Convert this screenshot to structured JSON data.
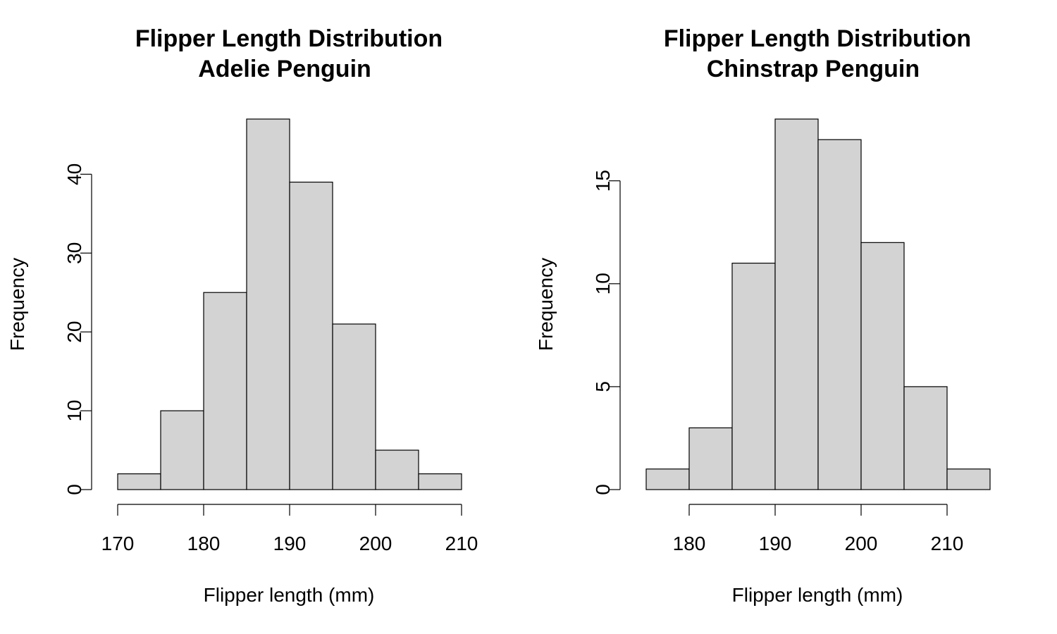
{
  "chart_data": [
    {
      "type": "bar",
      "title": "Flipper Length Distribution",
      "subtitle": "Adelie Penguin",
      "xlabel": "Flipper length (mm)",
      "ylabel": "Frequency",
      "bins": [
        [
          170,
          175
        ],
        [
          175,
          180
        ],
        [
          180,
          185
        ],
        [
          185,
          190
        ],
        [
          190,
          195
        ],
        [
          195,
          200
        ],
        [
          200,
          205
        ],
        [
          205,
          210
        ]
      ],
      "values": [
        2,
        10,
        25,
        47,
        39,
        21,
        5,
        2
      ],
      "xlim": [
        170,
        210
      ],
      "ylim": [
        0,
        47
      ],
      "xticks": [
        "170",
        "180",
        "190",
        "200",
        "210"
      ],
      "yticks": [
        "0",
        "10",
        "20",
        "30",
        "40"
      ],
      "grid": false,
      "bar_color": "#d3d3d3"
    },
    {
      "type": "bar",
      "title": "Flipper Length Distribution",
      "subtitle": "Chinstrap Penguin",
      "xlabel": "Flipper length (mm)",
      "ylabel": "Frequency",
      "bins": [
        [
          175,
          180
        ],
        [
          180,
          185
        ],
        [
          185,
          190
        ],
        [
          190,
          195
        ],
        [
          195,
          200
        ],
        [
          200,
          205
        ],
        [
          205,
          210
        ],
        [
          210,
          215
        ]
      ],
      "values": [
        1,
        3,
        11,
        18,
        17,
        12,
        5,
        1
      ],
      "xlim": [
        175,
        215
      ],
      "ylim": [
        0,
        18
      ],
      "xticks": [
        "180",
        "190",
        "200",
        "210"
      ],
      "yticks": [
        "0",
        "5",
        "10",
        "15"
      ],
      "grid": false,
      "bar_color": "#d3d3d3"
    }
  ]
}
